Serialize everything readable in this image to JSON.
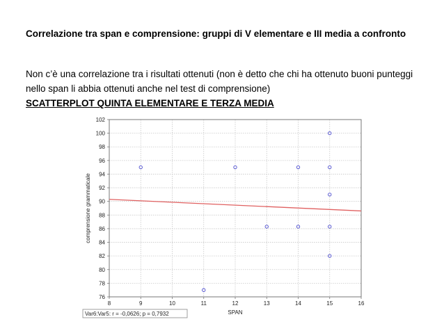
{
  "slide": {
    "title": "Correlazione tra span e comprensione: gruppi di V elementare e III media a confronto",
    "body": "Non c’è una correlazione tra i risultati ottenuti (non è detto che chi ha ottenuto buoni punteggi nello span li abbia ottenuti anche nel test di comprensione)",
    "subheading": "SCATTERPLOT  QUINTA ELEMENTARE E TERZA MEDIA"
  },
  "chart_data": {
    "type": "scatter",
    "xlabel": "SPAN",
    "ylabel": "comprensione grammaticale",
    "xlim": [
      8,
      16
    ],
    "ylim": [
      76,
      102
    ],
    "xticks": [
      8,
      9,
      10,
      11,
      12,
      13,
      14,
      15,
      16
    ],
    "yticks": [
      76,
      78,
      80,
      82,
      84,
      86,
      88,
      90,
      92,
      94,
      96,
      98,
      100,
      102
    ],
    "grid": true,
    "points": [
      {
        "x": 9,
        "y": 95
      },
      {
        "x": 11,
        "y": 77
      },
      {
        "x": 12,
        "y": 95
      },
      {
        "x": 13,
        "y": 86.3
      },
      {
        "x": 14,
        "y": 95
      },
      {
        "x": 14,
        "y": 86.3
      },
      {
        "x": 15,
        "y": 100
      },
      {
        "x": 15,
        "y": 95
      },
      {
        "x": 15,
        "y": 91
      },
      {
        "x": 15,
        "y": 86.3
      },
      {
        "x": 15,
        "y": 82
      }
    ],
    "regression_line": {
      "x": [
        8,
        16
      ],
      "y": [
        90.3,
        88.6
      ]
    },
    "stats_label": "Var6:Var5:  r = -0,0626; p = 0,7932",
    "colors": {
      "points": "#4a4ad0",
      "regression": "#e06060",
      "grid": "#c8c8c8"
    }
  }
}
